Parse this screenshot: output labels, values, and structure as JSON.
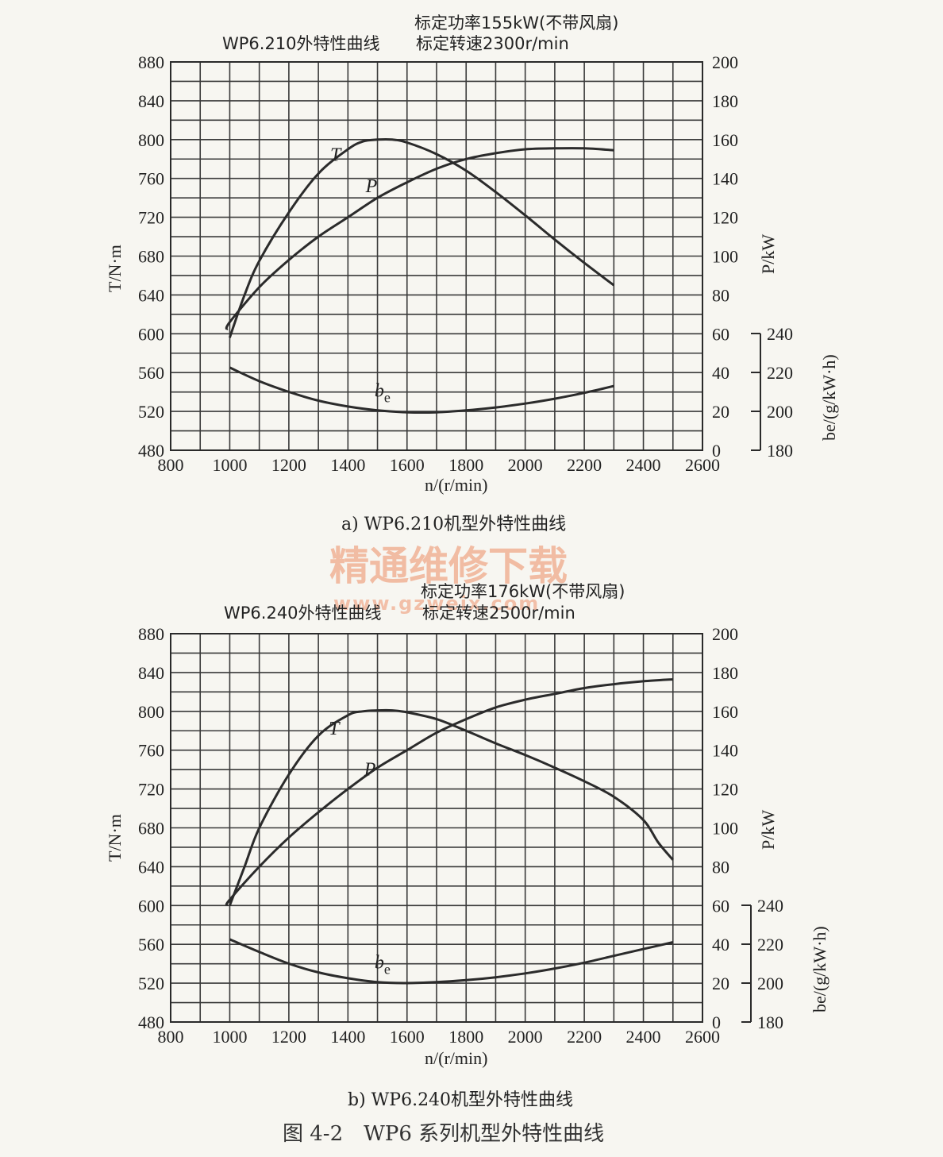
{
  "figure_caption": "图 4-2　WP6 系列机型外特性曲线",
  "watermark": {
    "title": "精通维修下载",
    "url": "www.gzweix.com"
  },
  "chart_data": [
    {
      "type": "line",
      "header_right_1": "标定功率155kW(不带风扇)",
      "header_left": "WP6.210外特性曲线",
      "header_right_2": "标定转速2300r/min",
      "caption": "a) WP6.210机型外特性曲线",
      "xlabel": "n/(r/min)",
      "ylabel_left": "T/N·m",
      "ylabel_right_power": "P/kW",
      "ylabel_right_be": "be/(g/kW·h)",
      "x_ticks": [
        800,
        1000,
        1200,
        1400,
        1600,
        1800,
        2000,
        2200,
        2400,
        2600
      ],
      "left_ticks": [
        480,
        520,
        560,
        600,
        640,
        680,
        720,
        760,
        800,
        840,
        880
      ],
      "power_ticks": [
        0,
        20,
        40,
        60,
        80,
        100,
        120,
        140,
        160,
        180,
        200
      ],
      "be_ticks": [
        180,
        200,
        220,
        240
      ],
      "xlim": [
        800,
        2600
      ],
      "ylim_torque": [
        480,
        880
      ],
      "ylim_power": [
        0,
        200
      ],
      "ylim_be": [
        180,
        240
      ],
      "grid": true,
      "series": [
        {
          "name": "T",
          "axis": "torque",
          "label_at": [
            1340,
            778
          ],
          "x": [
            1000,
            1050,
            1100,
            1200,
            1300,
            1400,
            1450,
            1500,
            1550,
            1600,
            1700,
            1800,
            1900,
            2000,
            2100,
            2200,
            2300
          ],
          "y": [
            596,
            640,
            675,
            725,
            765,
            790,
            798,
            800,
            800,
            797,
            785,
            768,
            746,
            722,
            697,
            673,
            650
          ]
        },
        {
          "name": "P",
          "axis": "power",
          "label_at": [
            1460,
            133
          ],
          "x": [
            990,
            1000,
            1100,
            1200,
            1300,
            1400,
            1500,
            1600,
            1700,
            1800,
            1900,
            2000,
            2100,
            2200,
            2300
          ],
          "y": [
            62,
            66,
            84,
            98,
            110,
            120,
            130,
            138,
            145,
            150,
            153,
            155,
            155.5,
            155.5,
            154.5
          ]
        },
        {
          "name": "be",
          "axis": "be",
          "label_at": [
            1490,
            207.5
          ],
          "x": [
            1000,
            1100,
            1200,
            1300,
            1400,
            1500,
            1600,
            1700,
            1800,
            1900,
            2000,
            2100,
            2200,
            2300
          ],
          "y": [
            222.5,
            215.5,
            210,
            205.5,
            202.5,
            200.5,
            199.5,
            199.5,
            200.5,
            202,
            204,
            206.5,
            209.5,
            213
          ]
        }
      ]
    },
    {
      "type": "line",
      "header_right_1": "标定功率176kW(不带风扇)",
      "header_left": "WP6.240外特性曲线",
      "header_right_2": "标定转速2500r/min",
      "caption": "b) WP6.240机型外特性曲线",
      "xlabel": "n/(r/min)",
      "ylabel_left": "T/N·m",
      "ylabel_right_power": "P/kW",
      "ylabel_right_be": "be/(g/kW·h)",
      "x_ticks": [
        800,
        1000,
        1200,
        1400,
        1600,
        1800,
        2000,
        2200,
        2400,
        2600
      ],
      "left_ticks": [
        480,
        520,
        560,
        600,
        640,
        680,
        720,
        760,
        800,
        840,
        880
      ],
      "power_ticks": [
        0,
        20,
        40,
        60,
        80,
        100,
        120,
        140,
        160,
        180,
        200
      ],
      "be_ticks": [
        180,
        200,
        220,
        240
      ],
      "xlim": [
        800,
        2600
      ],
      "ylim_torque": [
        480,
        880
      ],
      "ylim_power": [
        0,
        200
      ],
      "ylim_be": [
        180,
        240
      ],
      "grid": true,
      "series": [
        {
          "name": "T",
          "axis": "torque",
          "label_at": [
            1335,
            776
          ],
          "x": [
            1000,
            1050,
            1100,
            1200,
            1300,
            1400,
            1450,
            1500,
            1550,
            1600,
            1700,
            1800,
            1900,
            2000,
            2100,
            2200,
            2300,
            2400,
            2450,
            2500
          ],
          "y": [
            600,
            640,
            680,
            735,
            775,
            796,
            800,
            801,
            801,
            799,
            792,
            780,
            767,
            755,
            742,
            728,
            712,
            688,
            665,
            647
          ]
        },
        {
          "name": "P",
          "axis": "power",
          "label_at": [
            1455,
            127
          ],
          "x": [
            990,
            1000,
            1100,
            1200,
            1300,
            1400,
            1500,
            1600,
            1700,
            1800,
            1900,
            2000,
            2100,
            2200,
            2300,
            2400,
            2500
          ],
          "y": [
            60,
            63,
            80,
            95,
            108,
            120,
            131,
            140,
            149,
            156,
            162,
            166,
            169,
            172,
            174,
            175.5,
            176.5
          ]
        },
        {
          "name": "be",
          "axis": "be",
          "label_at": [
            1490,
            207.5
          ],
          "x": [
            1000,
            1100,
            1200,
            1300,
            1400,
            1500,
            1600,
            1700,
            1800,
            1900,
            2000,
            2100,
            2200,
            2300,
            2400,
            2500
          ],
          "y": [
            222.5,
            216,
            210,
            205.5,
            202.5,
            200.5,
            200,
            200.5,
            201.5,
            203,
            205,
            207.5,
            210.5,
            214,
            217.5,
            221
          ]
        }
      ]
    }
  ]
}
